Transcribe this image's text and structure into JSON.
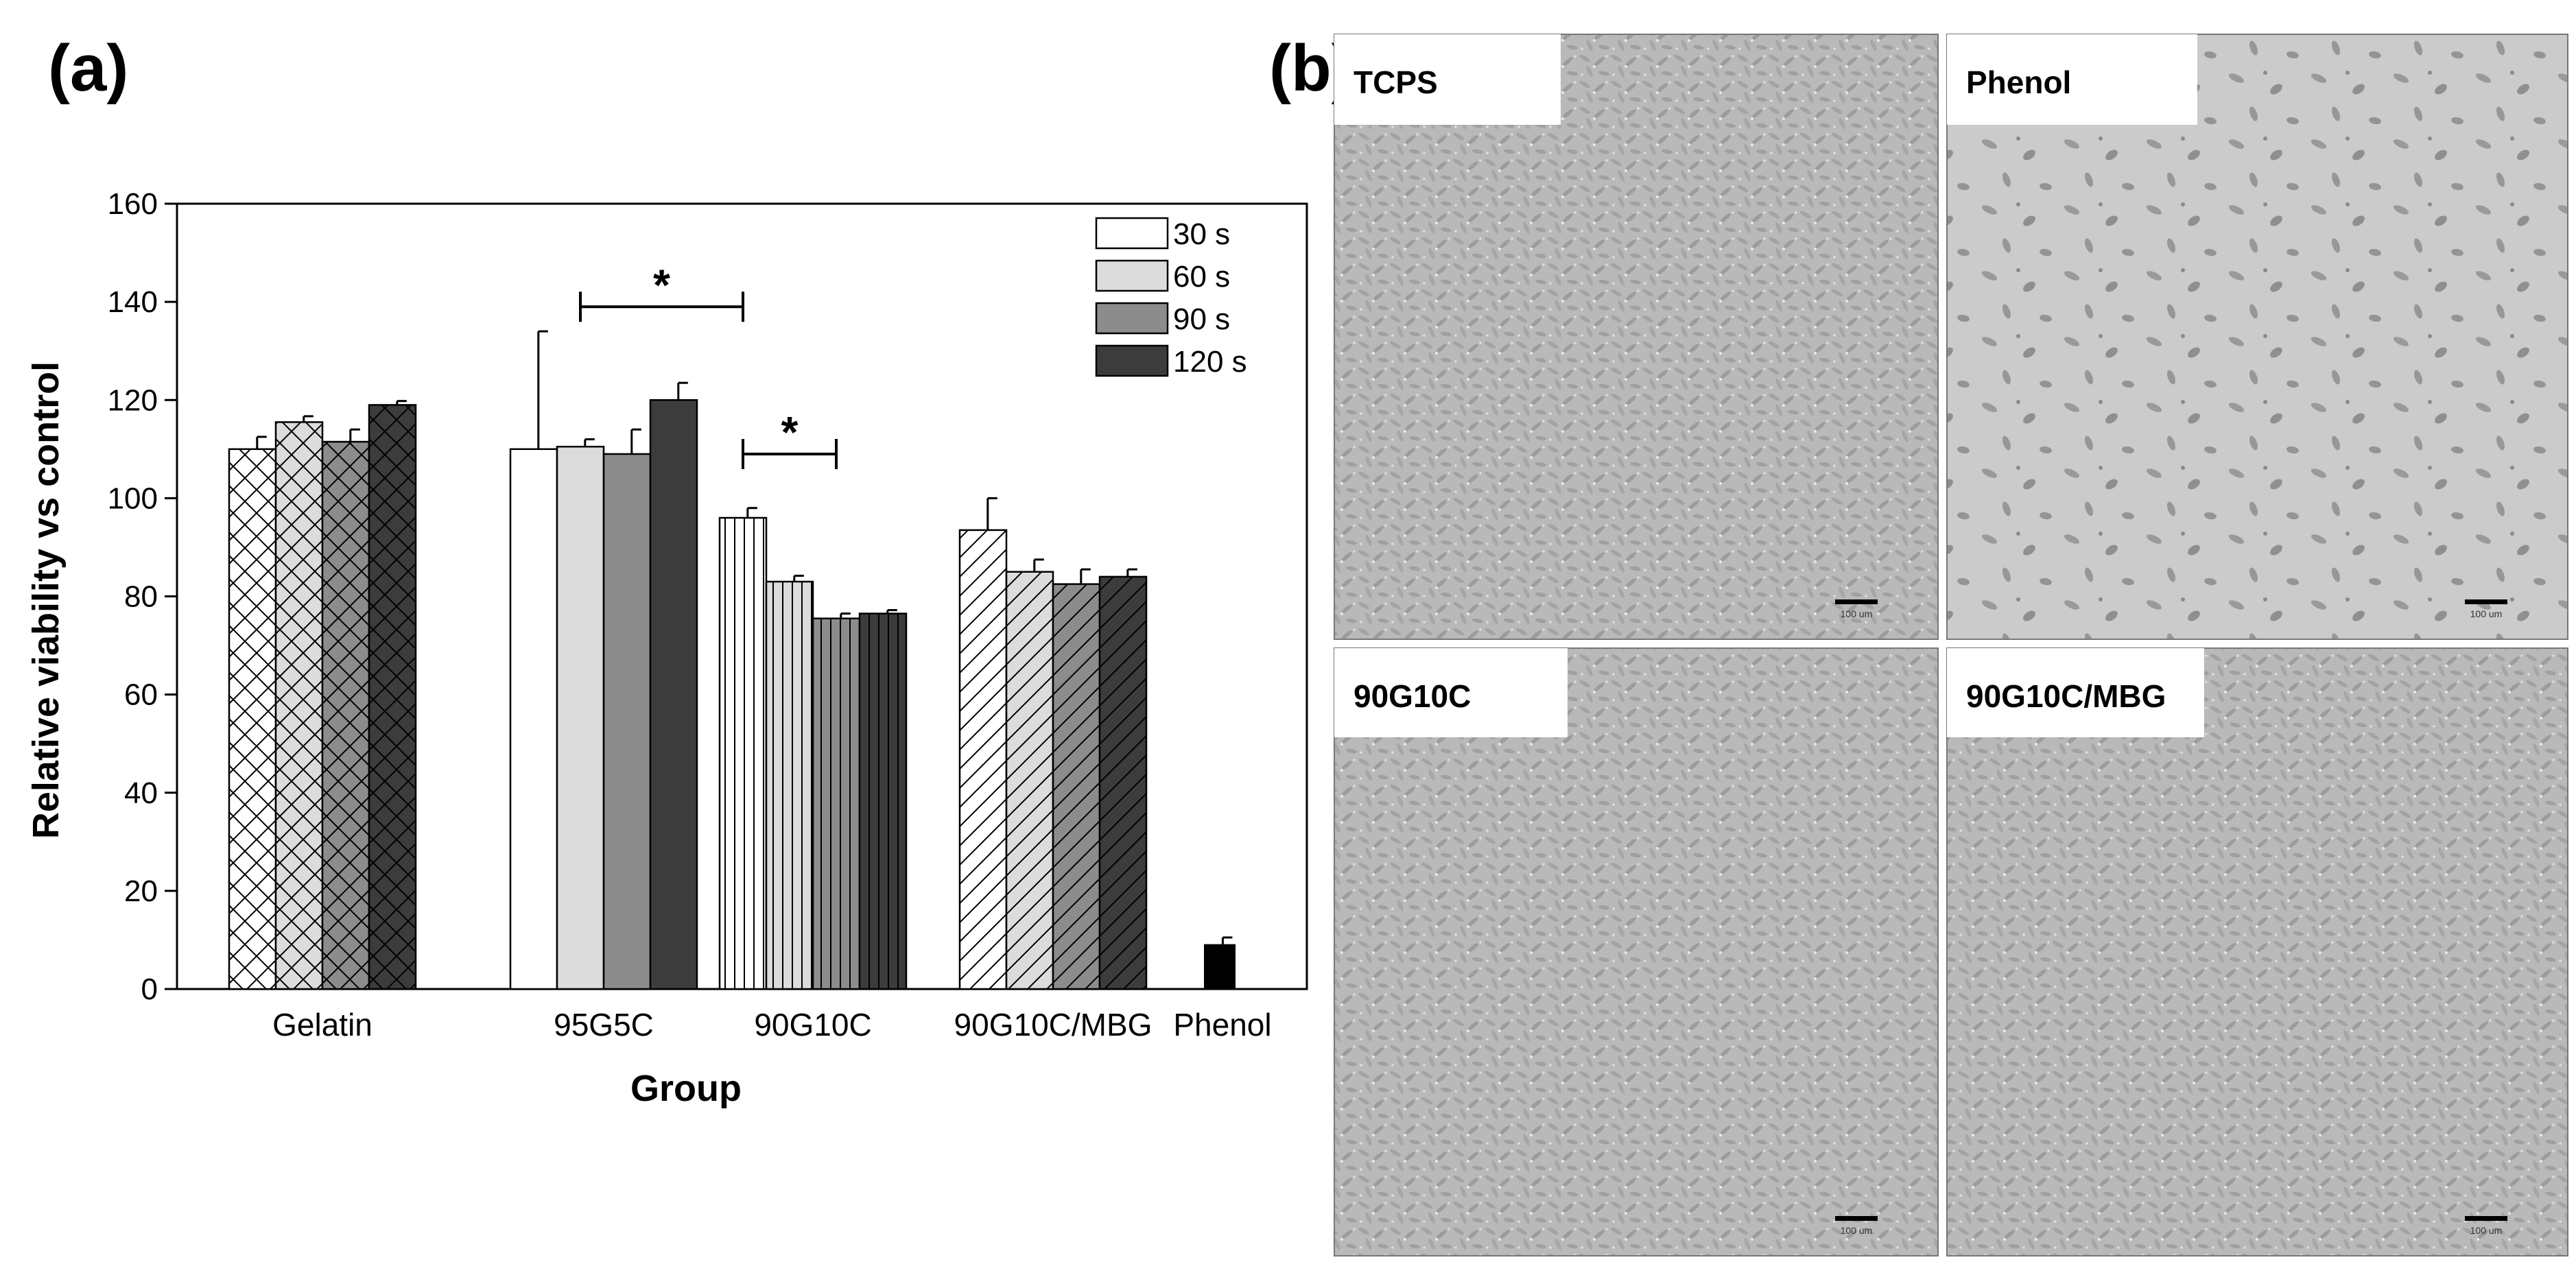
{
  "panel_a": {
    "label": "(a)"
  },
  "panel_b": {
    "label": "(b)",
    "micrographs": [
      {
        "label": "TCPS",
        "density": "high",
        "scale_bar": "100 um"
      },
      {
        "label": "Phenol",
        "density": "low",
        "scale_bar": "100 um"
      },
      {
        "label": "90G10C",
        "density": "high",
        "scale_bar": "100 um"
      },
      {
        "label": "90G10C/MBG",
        "density": "high",
        "scale_bar": "100 um"
      }
    ]
  },
  "chart_data": {
    "type": "bar",
    "title": "",
    "xlabel": "Group",
    "ylabel": "Relative viability vs control",
    "ylim": [
      0,
      160
    ],
    "yticks": [
      0,
      20,
      40,
      60,
      80,
      100,
      120,
      140,
      160
    ],
    "categories": [
      "Gelatin",
      "95G5C",
      "90G10C",
      "90G10C/MBG",
      "Phenol"
    ],
    "legend_position": "top-right",
    "grid": false,
    "series": [
      {
        "name": "30 s",
        "color": "#ffffff",
        "values": [
          110,
          110,
          96,
          93.5,
          null
        ],
        "errors": [
          2.5,
          24,
          2,
          6.5,
          null
        ]
      },
      {
        "name": "60 s",
        "color": "#dcdcdc",
        "values": [
          115.5,
          110.5,
          83,
          85,
          null
        ],
        "errors": [
          1.2,
          1.5,
          1.2,
          2.5,
          null
        ]
      },
      {
        "name": "90 s",
        "color": "#8c8c8c",
        "values": [
          111.5,
          109,
          75.5,
          82.5,
          null
        ],
        "errors": [
          2.5,
          5,
          1,
          3,
          null
        ]
      },
      {
        "name": "120 s",
        "color": "#3c3c3c",
        "values": [
          119,
          120,
          76.5,
          84,
          null
        ],
        "errors": [
          0.8,
          3.5,
          0.7,
          1.5,
          null
        ]
      }
    ],
    "single_bars": [
      {
        "category": "Phenol",
        "value": 9,
        "error": 1.5,
        "color": "#000000"
      }
    ],
    "hatch_by_category": [
      "crosshatch",
      "none",
      "vertical",
      "diagonal",
      "none"
    ],
    "annotations": [
      {
        "text": "*",
        "from": {
          "category": "95G5C",
          "series": "60 s"
        },
        "to": {
          "category": "90G10C",
          "series": "30 s"
        },
        "y": 139
      },
      {
        "text": "*",
        "from": {
          "category": "90G10C",
          "series": "30 s"
        },
        "to": {
          "category": "90G10C",
          "series": "90 s"
        },
        "y": 109
      }
    ]
  }
}
